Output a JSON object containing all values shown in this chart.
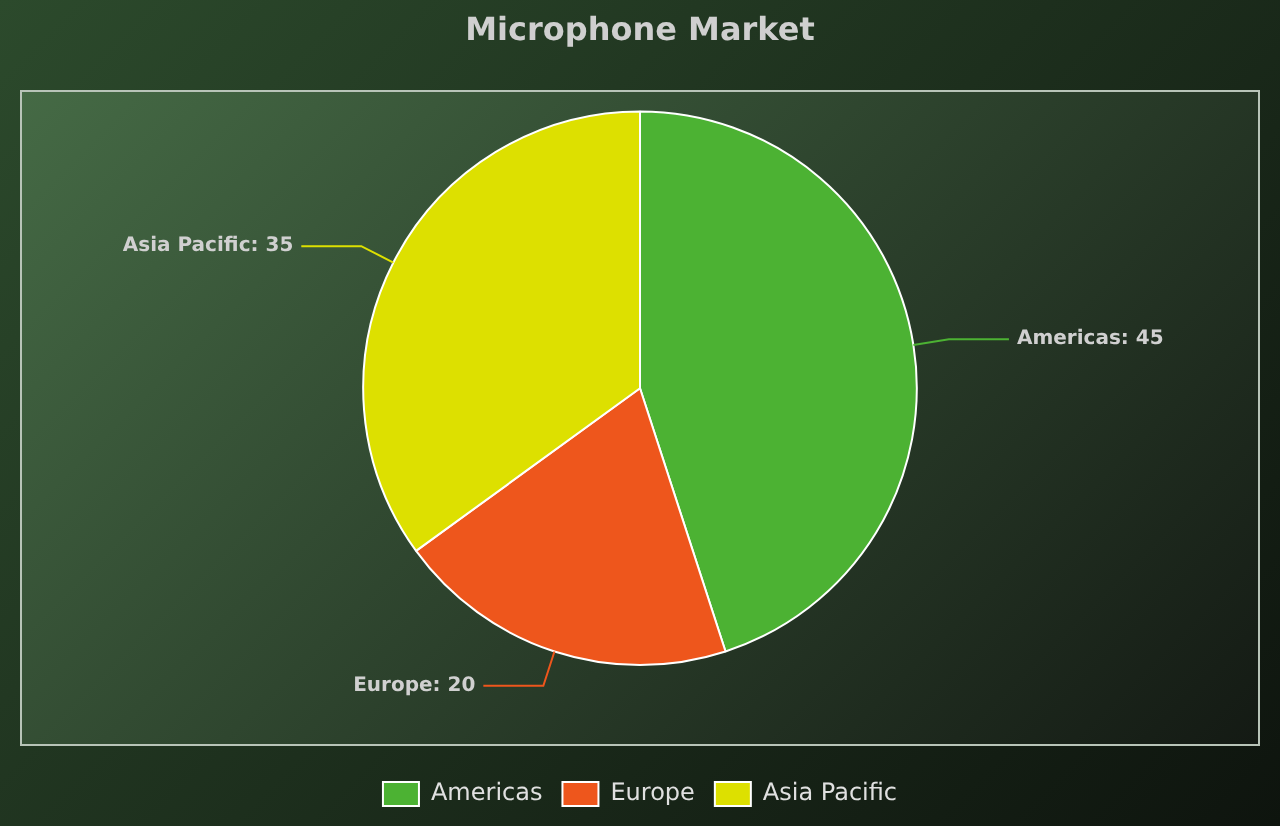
{
  "chart_data": {
    "type": "pie",
    "title": "Microphone Market",
    "categories": [
      "Americas",
      "Europe",
      "Asia Pacific"
    ],
    "values": [
      45,
      20,
      35
    ],
    "colors": [
      "#4cb233",
      "#ee561c",
      "#dde000"
    ],
    "value_labels": [
      "Americas: 45",
      "Europe: 20",
      "Asia Pacific: 35"
    ],
    "legend": "bottom"
  }
}
